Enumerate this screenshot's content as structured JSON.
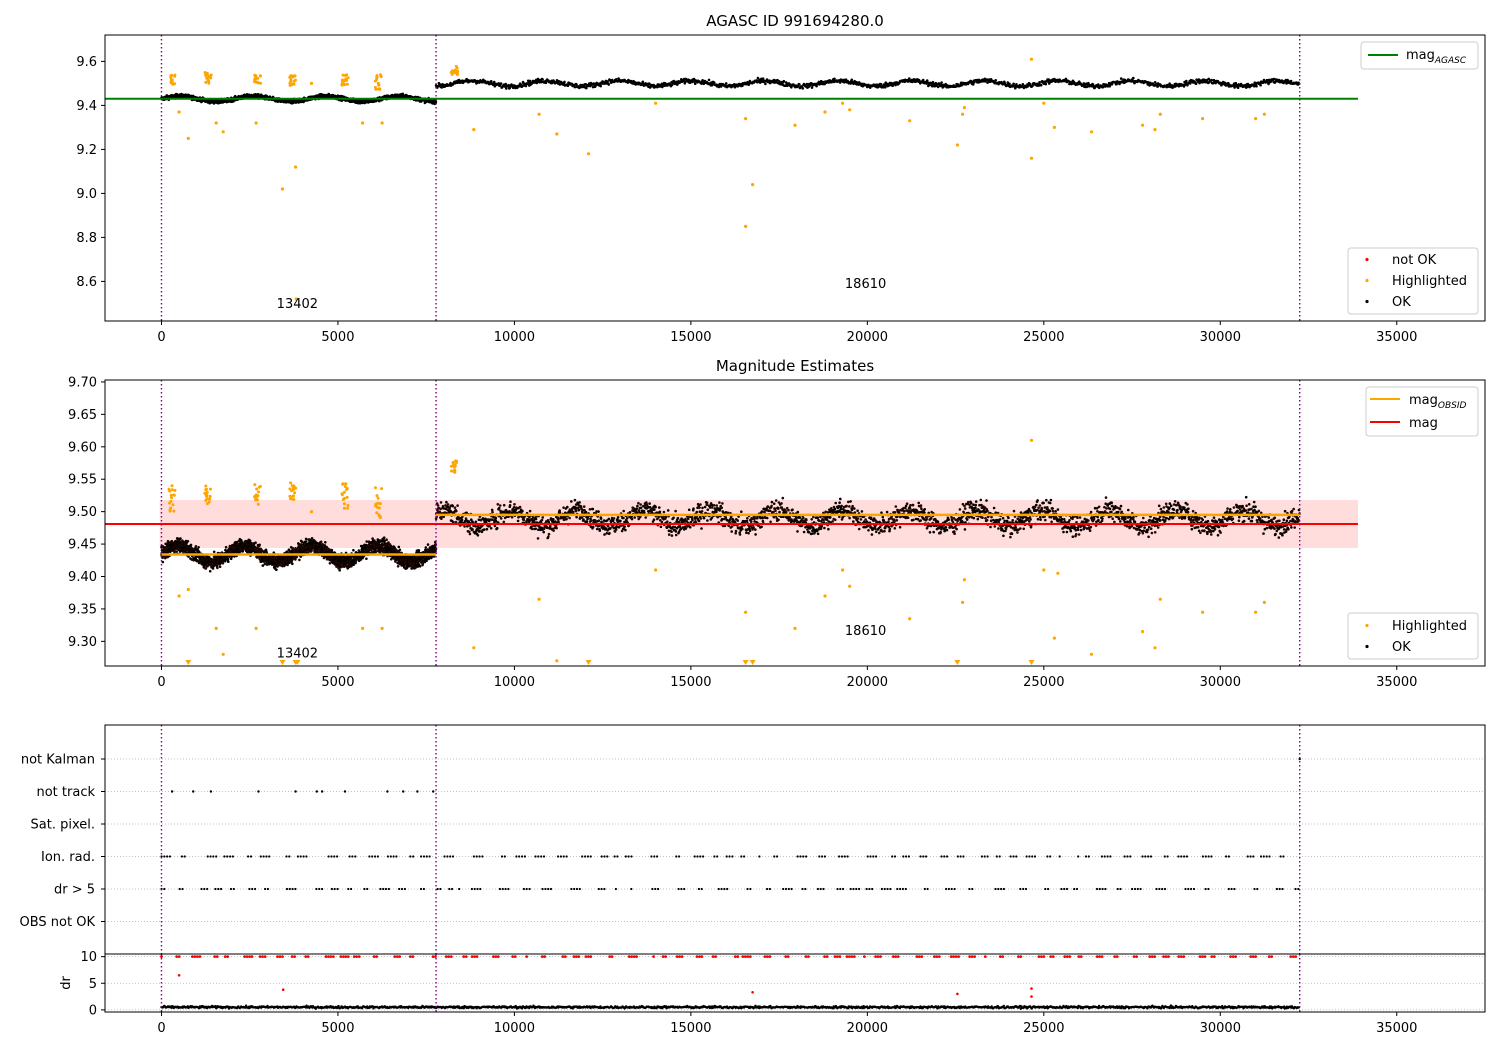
{
  "chart_data": [
    {
      "type": "scatter",
      "title": "AGASC ID 991694280.0",
      "xlim": [
        -1600,
        37500
      ],
      "ylim": [
        8.42,
        9.72
      ],
      "xticks": [
        0,
        5000,
        10000,
        15000,
        20000,
        25000,
        30000,
        35000
      ],
      "xtick_labels": [
        "0",
        "5000",
        "10000",
        "15000",
        "20000",
        "25000",
        "30000",
        "35000"
      ],
      "yticks": [
        8.6,
        8.8,
        9.0,
        9.2,
        9.4,
        9.6
      ],
      "ytick_labels": [
        "8.6",
        "8.8",
        "9.0",
        "9.2",
        "9.4",
        "9.6"
      ],
      "obsid_boundaries": [
        0,
        7780,
        32250
      ],
      "annotations": [
        {
          "text": "13402",
          "x": 3850,
          "y": 8.48
        },
        {
          "text": "18610",
          "x": 19950,
          "y": 8.57
        }
      ],
      "reference_lines": [
        {
          "name": "mag_AGASC",
          "color": "#008000",
          "x": [
            -1600,
            33900
          ],
          "y": 9.43
        }
      ],
      "ok_bands": [
        {
          "x": [
            0,
            7780
          ],
          "center": 9.43,
          "spread": 0.025,
          "color": "#000000"
        },
        {
          "x": [
            7780,
            32250
          ],
          "center": 9.5,
          "spread": 0.03,
          "color": "#000000"
        }
      ],
      "highlighted_clusters": [
        {
          "x": 300,
          "y": [
            9.48,
            9.54
          ]
        },
        {
          "x": 1320,
          "y": [
            9.5,
            9.55
          ]
        },
        {
          "x": 2720,
          "y": [
            9.5,
            9.54
          ]
        },
        {
          "x": 3720,
          "y": [
            9.49,
            9.54
          ]
        },
        {
          "x": 5200,
          "y": [
            9.49,
            9.54
          ]
        },
        {
          "x": 6150,
          "y": [
            9.47,
            9.54
          ]
        },
        {
          "x": 8300,
          "y": [
            9.54,
            9.58
          ]
        }
      ],
      "highlighted_points": [
        [
          760,
          9.25
        ],
        [
          500,
          9.37
        ],
        [
          1550,
          9.32
        ],
        [
          1750,
          9.28
        ],
        [
          2680,
          9.32
        ],
        [
          3430,
          9.02
        ],
        [
          3800,
          9.12
        ],
        [
          3820,
          8.52
        ],
        [
          4250,
          9.5
        ],
        [
          5700,
          9.32
        ],
        [
          6250,
          9.32
        ],
        [
          8850,
          9.29
        ],
        [
          10700,
          9.36
        ],
        [
          11200,
          9.27
        ],
        [
          12100,
          9.18
        ],
        [
          14000,
          9.41
        ],
        [
          16550,
          9.34
        ],
        [
          16550,
          8.85
        ],
        [
          16750,
          9.04
        ],
        [
          17950,
          9.31
        ],
        [
          18800,
          9.37
        ],
        [
          19300,
          9.41
        ],
        [
          19500,
          9.38
        ],
        [
          21200,
          9.33
        ],
        [
          22550,
          9.22
        ],
        [
          22700,
          9.36
        ],
        [
          22750,
          9.39
        ],
        [
          24650,
          9.61
        ],
        [
          24650,
          9.16
        ],
        [
          25000,
          9.41
        ],
        [
          25300,
          9.3
        ],
        [
          26350,
          9.28
        ],
        [
          27800,
          9.31
        ],
        [
          28150,
          9.29
        ],
        [
          28300,
          9.36
        ],
        [
          29500,
          9.34
        ],
        [
          31000,
          9.34
        ],
        [
          31250,
          9.36
        ]
      ],
      "legends": [
        {
          "position": "top-right",
          "entries": [
            {
              "label": "mag",
              "sub": "AGASC",
              "marker": "line",
              "color": "#008000"
            }
          ]
        },
        {
          "position": "bottom-right",
          "entries": [
            {
              "label": "not OK",
              "marker": "dot",
              "color": "#ff0000"
            },
            {
              "label": "Highlighted",
              "marker": "dot",
              "color": "#ffa500"
            },
            {
              "label": "OK",
              "marker": "dot",
              "color": "#000000"
            }
          ]
        }
      ]
    },
    {
      "type": "scatter",
      "title": "Magnitude Estimates",
      "xlim": [
        -1600,
        37500
      ],
      "ylim": [
        9.262,
        9.703
      ],
      "xticks": [
        0,
        5000,
        10000,
        15000,
        20000,
        25000,
        30000,
        35000
      ],
      "xtick_labels": [
        "0",
        "5000",
        "10000",
        "15000",
        "20000",
        "25000",
        "30000",
        "35000"
      ],
      "yticks": [
        9.3,
        9.35,
        9.4,
        9.45,
        9.5,
        9.55,
        9.6,
        9.65,
        9.7
      ],
      "ytick_labels": [
        "9.30",
        "9.35",
        "9.40",
        "9.45",
        "9.50",
        "9.55",
        "9.60",
        "9.65",
        "9.70"
      ],
      "obsid_boundaries": [
        0,
        7780,
        32250
      ],
      "annotations": [
        {
          "text": "13402",
          "x": 3850,
          "y": 9.275
        },
        {
          "text": "18610",
          "x": 19950,
          "y": 9.31
        }
      ],
      "mag_band": {
        "x": [
          -50,
          33900
        ],
        "ylow": 9.444,
        "yhigh": 9.518,
        "color": "#ffdddd"
      },
      "reference_lines": [
        {
          "name": "mag",
          "color": "#ff0000",
          "x": [
            -1600,
            33900
          ],
          "y": 9.481
        }
      ],
      "obsid_lines": [
        {
          "x": [
            0,
            7780
          ],
          "y": 9.434,
          "color": "#ffa500"
        },
        {
          "x": [
            7780,
            32250
          ],
          "y": 9.495,
          "color": "#ffa500"
        }
      ],
      "ok_bands": [
        {
          "x": [
            0,
            7780
          ],
          "center": 9.435,
          "spread": 0.025,
          "color": "#200800"
        },
        {
          "x": [
            7780,
            32250
          ],
          "center": 9.49,
          "spread": 0.035,
          "color": "#200800"
        }
      ],
      "highlighted_clusters": [
        {
          "x": 300,
          "y": [
            9.5,
            9.54
          ]
        },
        {
          "x": 1320,
          "y": [
            9.51,
            9.545
          ]
        },
        {
          "x": 2720,
          "y": [
            9.51,
            9.545
          ]
        },
        {
          "x": 3720,
          "y": [
            9.5,
            9.545
          ]
        },
        {
          "x": 5200,
          "y": [
            9.5,
            9.545
          ]
        },
        {
          "x": 6150,
          "y": [
            9.49,
            9.54
          ]
        },
        {
          "x": 8300,
          "y": [
            9.56,
            9.58
          ]
        }
      ],
      "highlighted_points": [
        [
          500,
          9.37
        ],
        [
          760,
          9.38
        ],
        [
          1550,
          9.32
        ],
        [
          1750,
          9.28
        ],
        [
          2680,
          9.32
        ],
        [
          4250,
          9.5
        ],
        [
          5700,
          9.32
        ],
        [
          6250,
          9.32
        ],
        [
          8850,
          9.29
        ],
        [
          10700,
          9.365
        ],
        [
          11200,
          9.27
        ],
        [
          14000,
          9.41
        ],
        [
          16550,
          9.345
        ],
        [
          17950,
          9.32
        ],
        [
          18800,
          9.37
        ],
        [
          19300,
          9.41
        ],
        [
          19500,
          9.385
        ],
        [
          21200,
          9.335
        ],
        [
          22700,
          9.36
        ],
        [
          22750,
          9.395
        ],
        [
          24650,
          9.61
        ],
        [
          25000,
          9.41
        ],
        [
          25300,
          9.305
        ],
        [
          25400,
          9.405
        ],
        [
          26350,
          9.28
        ],
        [
          27800,
          9.315
        ],
        [
          28150,
          9.29
        ],
        [
          28300,
          9.365
        ],
        [
          29500,
          9.345
        ],
        [
          31000,
          9.345
        ],
        [
          31250,
          9.36
        ]
      ],
      "below_range_markers": [
        760,
        3430,
        3800,
        3850,
        12100,
        16550,
        16750,
        22550,
        24650
      ],
      "legends": [
        {
          "position": "top-right",
          "entries": [
            {
              "label": "mag",
              "sub": "OBSID",
              "marker": "line",
              "color": "#ffa500"
            },
            {
              "label": "mag",
              "sub": "",
              "marker": "line",
              "color": "#ff0000"
            }
          ]
        },
        {
          "position": "bottom-right",
          "entries": [
            {
              "label": "Highlighted",
              "marker": "dot",
              "color": "#ffa500"
            },
            {
              "label": "OK",
              "marker": "dot",
              "color": "#000000"
            }
          ]
        }
      ]
    },
    {
      "type": "scatter",
      "title": "",
      "xlim": [
        -1600,
        37500
      ],
      "flag_rows": [
        "not Kalman",
        "not track",
        "Sat. pixel.",
        "Ion. rad.",
        "dr > 5",
        "OBS not OK"
      ],
      "obsid_boundaries": [
        0,
        7780,
        32250
      ],
      "flag_points": {
        "not Kalman": [
          32250
        ],
        "not track": [
          300,
          900,
          1400,
          2750,
          3800,
          4400,
          4550,
          5200,
          6400,
          6850,
          7250,
          7700
        ],
        "Sat. pixel.": [],
        "Ion. rad.": "dense-intermittent",
        "dr > 5": "dense-intermittent",
        "OBS not OK": []
      }
    },
    {
      "type": "scatter",
      "title": "",
      "ylabel": "dr",
      "xlim": [
        -1600,
        37500
      ],
      "ylim": [
        -0.4,
        10.5
      ],
      "xticks": [
        0,
        5000,
        10000,
        15000,
        20000,
        25000,
        30000,
        35000
      ],
      "xtick_labels": [
        "0",
        "5000",
        "10000",
        "15000",
        "20000",
        "25000",
        "30000",
        "35000"
      ],
      "yticks": [
        0,
        5,
        10
      ],
      "ytick_labels": [
        "0",
        "5",
        "10"
      ],
      "obsid_boundaries": [
        0,
        7780,
        32250
      ],
      "clipped_level": 10,
      "red_points": [
        [
          500,
          6.5
        ],
        [
          3450,
          3.8
        ],
        [
          16750,
          3.3
        ],
        [
          22550,
          3.0
        ],
        [
          24650,
          4.0
        ],
        [
          24650,
          2.5
        ]
      ],
      "ok_band": {
        "x": [
          0,
          32250
        ],
        "center": 0.5,
        "spread": 0.35
      }
    }
  ]
}
